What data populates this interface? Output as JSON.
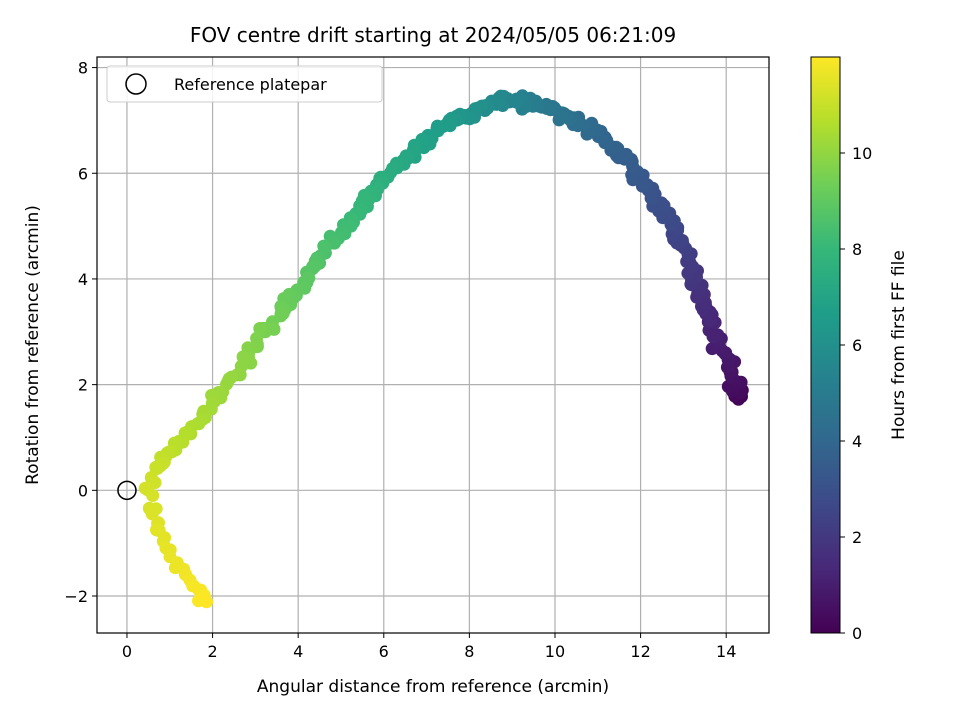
{
  "chart_data": {
    "type": "scatter",
    "title": "FOV centre drift starting at 2024/05/05 06:21:09",
    "xlabel": "Angular distance from reference (arcmin)",
    "ylabel": "Rotation from reference (arcmin)",
    "xlim": [
      -0.7,
      15.0
    ],
    "ylim": [
      -2.7,
      8.2
    ],
    "xticks": [
      "0",
      "2",
      "4",
      "6",
      "8",
      "10",
      "12",
      "14"
    ],
    "yticks": [
      "−2",
      "0",
      "2",
      "4",
      "6",
      "8"
    ],
    "grid": true,
    "legend": {
      "placement": "top-left",
      "entries": [
        "Reference platepar"
      ]
    },
    "reference_point": {
      "x": 0,
      "y": 0
    },
    "colorbar": {
      "label": "Hours from first FF file",
      "min": 0,
      "max": 12,
      "ticks": [
        "0",
        "2",
        "4",
        "6",
        "8",
        "10"
      ],
      "colormap": "viridis",
      "colors": [
        "#440154",
        "#482878",
        "#3e4989",
        "#31688e",
        "#26828e",
        "#1f9e89",
        "#35b779",
        "#6ece58",
        "#b5de2b",
        "#fde725"
      ]
    },
    "trajectory_keypoints": [
      {
        "t": 0.0,
        "x": 14.3,
        "y": 1.75
      },
      {
        "t": 0.4,
        "x": 14.25,
        "y": 1.9
      },
      {
        "t": 0.9,
        "x": 13.9,
        "y": 2.7
      },
      {
        "t": 1.3,
        "x": 13.6,
        "y": 3.2
      },
      {
        "t": 1.8,
        "x": 13.3,
        "y": 3.9
      },
      {
        "t": 2.3,
        "x": 13.0,
        "y": 4.6
      },
      {
        "t": 2.8,
        "x": 12.6,
        "y": 5.2
      },
      {
        "t": 3.3,
        "x": 12.0,
        "y": 5.9
      },
      {
        "t": 3.8,
        "x": 11.3,
        "y": 6.6
      },
      {
        "t": 4.3,
        "x": 10.5,
        "y": 7.0
      },
      {
        "t": 4.9,
        "x": 9.6,
        "y": 7.3
      },
      {
        "t": 5.5,
        "x": 8.9,
        "y": 7.4
      },
      {
        "t": 6.0,
        "x": 8.2,
        "y": 7.2
      },
      {
        "t": 6.5,
        "x": 7.5,
        "y": 6.95
      },
      {
        "t": 7.0,
        "x": 6.7,
        "y": 6.4
      },
      {
        "t": 7.5,
        "x": 6.0,
        "y": 5.9
      },
      {
        "t": 8.0,
        "x": 5.4,
        "y": 5.3
      },
      {
        "t": 8.5,
        "x": 4.7,
        "y": 4.6
      },
      {
        "t": 9.0,
        "x": 4.0,
        "y": 3.8
      },
      {
        "t": 9.5,
        "x": 3.3,
        "y": 3.1
      },
      {
        "t": 10.0,
        "x": 2.5,
        "y": 2.2
      },
      {
        "t": 10.5,
        "x": 1.6,
        "y": 1.2
      },
      {
        "t": 10.9,
        "x": 0.9,
        "y": 0.6
      },
      {
        "t": 11.2,
        "x": 0.45,
        "y": 0.0
      },
      {
        "t": 11.5,
        "x": 0.75,
        "y": -0.9
      },
      {
        "t": 11.8,
        "x": 1.5,
        "y": -1.7
      },
      {
        "t": 12.0,
        "x": 1.85,
        "y": -2.1
      }
    ],
    "sample_count": 420
  }
}
